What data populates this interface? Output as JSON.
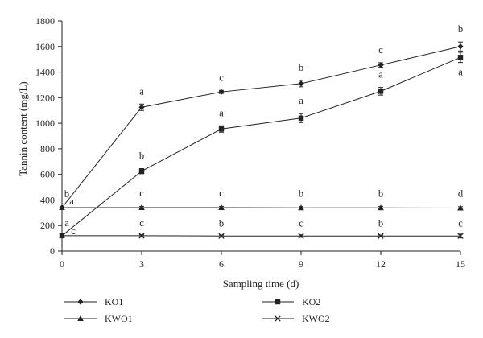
{
  "chart_data": {
    "type": "line",
    "xlabel": "Sampling time (d)",
    "ylabel": "Tannin content (mg/L)",
    "x": [
      0,
      3,
      6,
      9,
      12,
      15
    ],
    "xlim": [
      0,
      15
    ],
    "ylim": [
      0,
      1800
    ],
    "xticks": [
      0,
      3,
      6,
      9,
      12,
      15
    ],
    "yticks": [
      0,
      200,
      400,
      600,
      800,
      1000,
      1200,
      1400,
      1600,
      1800
    ],
    "grid": false,
    "legend_position": "bottom",
    "series": [
      {
        "name": "KO1",
        "marker": "diamond",
        "values": [
          340,
          1125,
          1245,
          1310,
          1455,
          1600
        ],
        "errors": [
          10,
          25,
          12,
          25,
          18,
          35
        ],
        "letters": [
          "b",
          "a",
          "c",
          "b",
          "c",
          "b"
        ]
      },
      {
        "name": "KO2",
        "marker": "square",
        "values": [
          120,
          625,
          955,
          1040,
          1250,
          1515
        ],
        "errors": [
          8,
          20,
          25,
          35,
          30,
          40
        ],
        "letters": [
          "a",
          "b",
          "a",
          "a",
          "a",
          "a"
        ]
      },
      {
        "name": "KWO1",
        "marker": "triangle",
        "values": [
          340,
          340,
          340,
          338,
          338,
          337
        ],
        "errors": [
          10,
          10,
          10,
          10,
          12,
          10
        ],
        "letters": [
          "a",
          "c",
          "c",
          "b",
          "b",
          "d"
        ]
      },
      {
        "name": "KWO2",
        "marker": "x",
        "values": [
          120,
          120,
          118,
          118,
          118,
          118
        ],
        "errors": [
          5,
          8,
          8,
          10,
          8,
          15
        ],
        "letters": [
          "c",
          "c",
          "b",
          "c",
          "b",
          "c"
        ]
      }
    ]
  }
}
